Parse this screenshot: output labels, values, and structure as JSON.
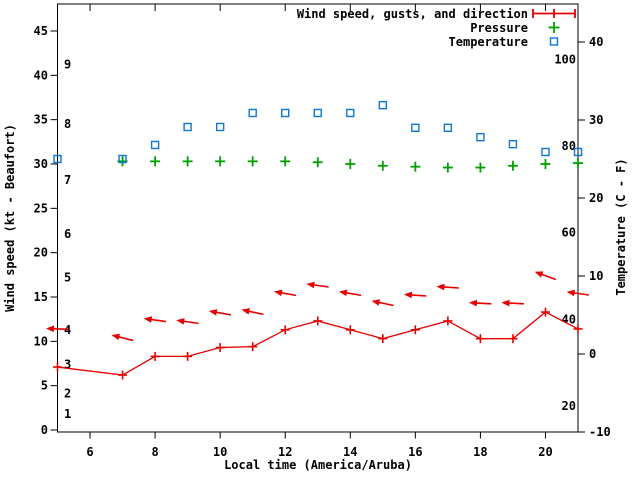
{
  "legend": {
    "items": [
      {
        "label": "Wind speed, gusts, and direction",
        "series": "wind",
        "color": "#e60000",
        "marker": "errorbar-plus"
      },
      {
        "label": "Pressure",
        "series": "pressure",
        "color": "#00a000",
        "marker": "plus"
      },
      {
        "label": "Temperature",
        "series": "temperature",
        "color": "#0c77d8",
        "marker": "open-square"
      }
    ]
  },
  "axes": {
    "x": {
      "label": "Local time (America/Aruba)",
      "min": 5,
      "max": 21,
      "tick_values": [
        6,
        8,
        10,
        12,
        14,
        16,
        18,
        20
      ]
    },
    "y_left": {
      "label": "Wind speed (kt - Beaufort)",
      "min": 0,
      "max": 45,
      "tick_values": [
        0,
        5,
        10,
        15,
        20,
        25,
        30,
        35,
        40,
        45
      ],
      "beaufort_labels": [
        {
          "value": "1",
          "kt": 1.8
        },
        {
          "value": "2",
          "kt": 4.1
        },
        {
          "value": "3",
          "kt": 7.4
        },
        {
          "value": "4",
          "kt": 11.3
        },
        {
          "value": "5",
          "kt": 17.2
        },
        {
          "value": "6",
          "kt": 22.1
        },
        {
          "value": "7",
          "kt": 28.2
        },
        {
          "value": "8",
          "kt": 34.5
        },
        {
          "value": "9",
          "kt": 41.2
        }
      ]
    },
    "y_right": {
      "label": "Temperature (C - F)",
      "min_c": -10,
      "max_c": 40,
      "tick_values_c": [
        -10,
        0,
        10,
        20,
        30,
        40
      ],
      "fahrenheit_labels": [
        "20",
        "40",
        "60",
        "80",
        "100"
      ]
    }
  },
  "chart_data": {
    "type": "line",
    "x_label": "Local time (America/Aruba)",
    "x_range": [
      5,
      21
    ],
    "grid": false,
    "legend_position": "top-right",
    "x_hours": [
      5,
      7,
      8,
      9,
      10,
      11,
      12,
      13,
      14,
      15,
      16,
      17,
      18,
      19,
      20,
      21
    ],
    "series": [
      {
        "name": "wind_speed_kt",
        "axis": "left",
        "color": "#e60000",
        "marker": "plus",
        "line": true,
        "values": [
          7.1,
          6.2,
          8.3,
          8.3,
          9.3,
          9.4,
          11.3,
          12.3,
          11.3,
          10.3,
          11.3,
          12.3,
          10.3,
          10.3,
          13.3,
          11.4
        ]
      },
      {
        "name": "wind_gust_kt",
        "axis": "left",
        "color": "#e60000",
        "marker": "direction-arrow",
        "line": false,
        "values": [
          11.4,
          10.4,
          12.4,
          12.2,
          13.2,
          13.3,
          15.4,
          16.3,
          15.4,
          14.3,
          15.2,
          16.1,
          14.3,
          14.3,
          17.4,
          15.4
        ]
      },
      {
        "name": "wind_arrow_rotation_deg",
        "axis": "left",
        "note": "0 = arrow points due left (easterly wind), positive = head tilted downward",
        "values": [
          2,
          14,
          8,
          8,
          10,
          12,
          10,
          8,
          10,
          12,
          4,
          4,
          3,
          3,
          20,
          8
        ]
      },
      {
        "name": "pressure_plotted_left_scale",
        "axis": "left",
        "color": "#00a000",
        "marker": "plus",
        "line": false,
        "note": "pressure axis not drawn; values as read against the left kt scale (inHg-like)",
        "values": [
          null,
          30.3,
          30.3,
          30.3,
          30.3,
          30.3,
          30.3,
          30.2,
          30.0,
          29.8,
          29.7,
          29.6,
          29.6,
          29.8,
          30.0,
          30.1
        ]
      },
      {
        "name": "temperature_c",
        "axis": "right",
        "color": "#0c77d8",
        "marker": "open-square",
        "line": false,
        "values": [
          25,
          25,
          26.8,
          29.1,
          29.1,
          30.9,
          30.9,
          30.9,
          30.9,
          31.9,
          29,
          29,
          27.8,
          26.9,
          25.9,
          25.9
        ]
      }
    ]
  }
}
